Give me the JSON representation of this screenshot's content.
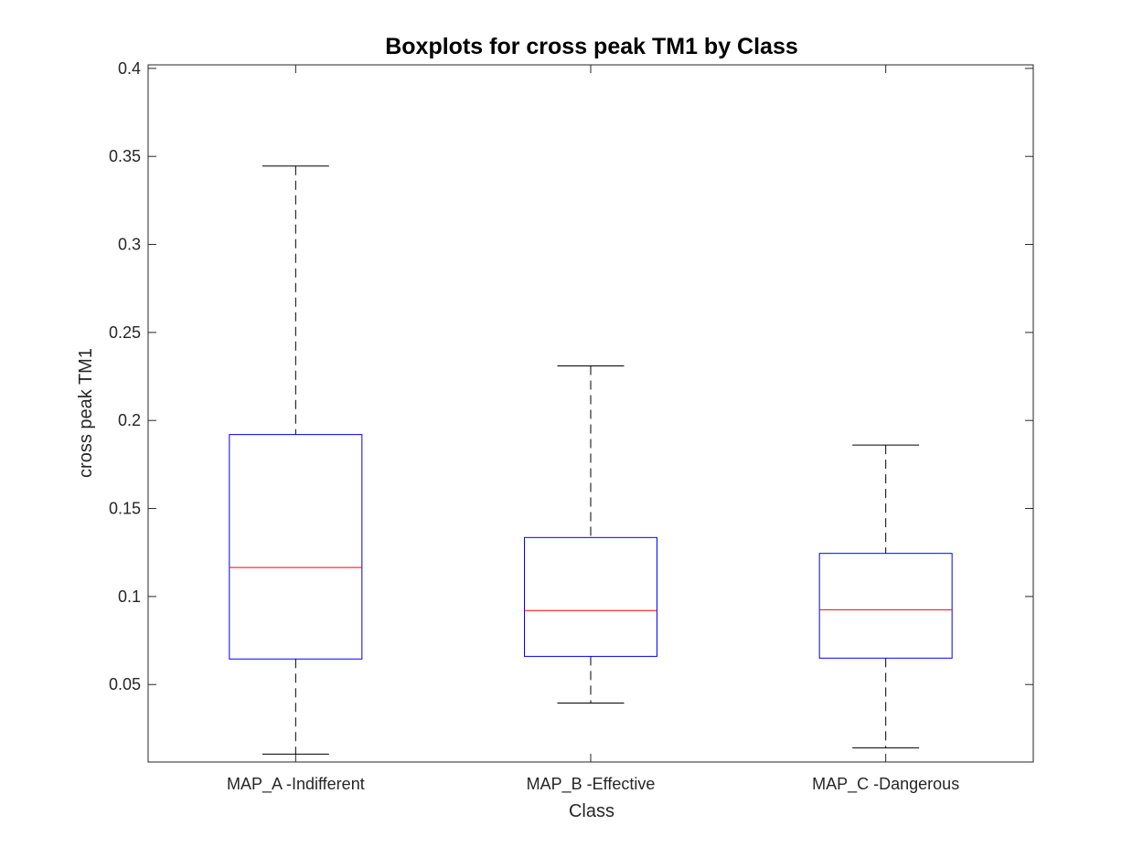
{
  "chart_data": {
    "type": "boxplot",
    "title": "Boxplots for cross peak TM1 by Class",
    "xlabel": "Class",
    "ylabel": "cross peak TM1",
    "ylim": [
      0.006,
      0.402
    ],
    "yticks": [
      0.05,
      0.1,
      0.15,
      0.2,
      0.25,
      0.3,
      0.35,
      0.4
    ],
    "ytick_labels": [
      "0.05",
      "0.1",
      "0.15",
      "0.2",
      "0.25",
      "0.3",
      "0.35",
      "0.4"
    ],
    "categories": [
      "MAP_A -Indifferent",
      "MAP_B -Effective",
      "MAP_C -Dangerous"
    ],
    "boxes": [
      {
        "category": "MAP_A -Indifferent",
        "whisker_low": 0.0105,
        "q1": 0.0645,
        "median": 0.1165,
        "q3": 0.192,
        "whisker_high": 0.3445
      },
      {
        "category": "MAP_B -Effective",
        "whisker_low": 0.0395,
        "q1": 0.066,
        "median": 0.092,
        "q3": 0.1335,
        "whisker_high": 0.231
      },
      {
        "category": "MAP_C -Dangerous",
        "whisker_low": 0.014,
        "q1": 0.065,
        "median": 0.0925,
        "q3": 0.1245,
        "whisker_high": 0.186
      }
    ],
    "grid": false,
    "colors": {
      "box": "#0000ff",
      "median": "#ff0000",
      "whisker": "#000000",
      "axis": "#262626"
    }
  }
}
